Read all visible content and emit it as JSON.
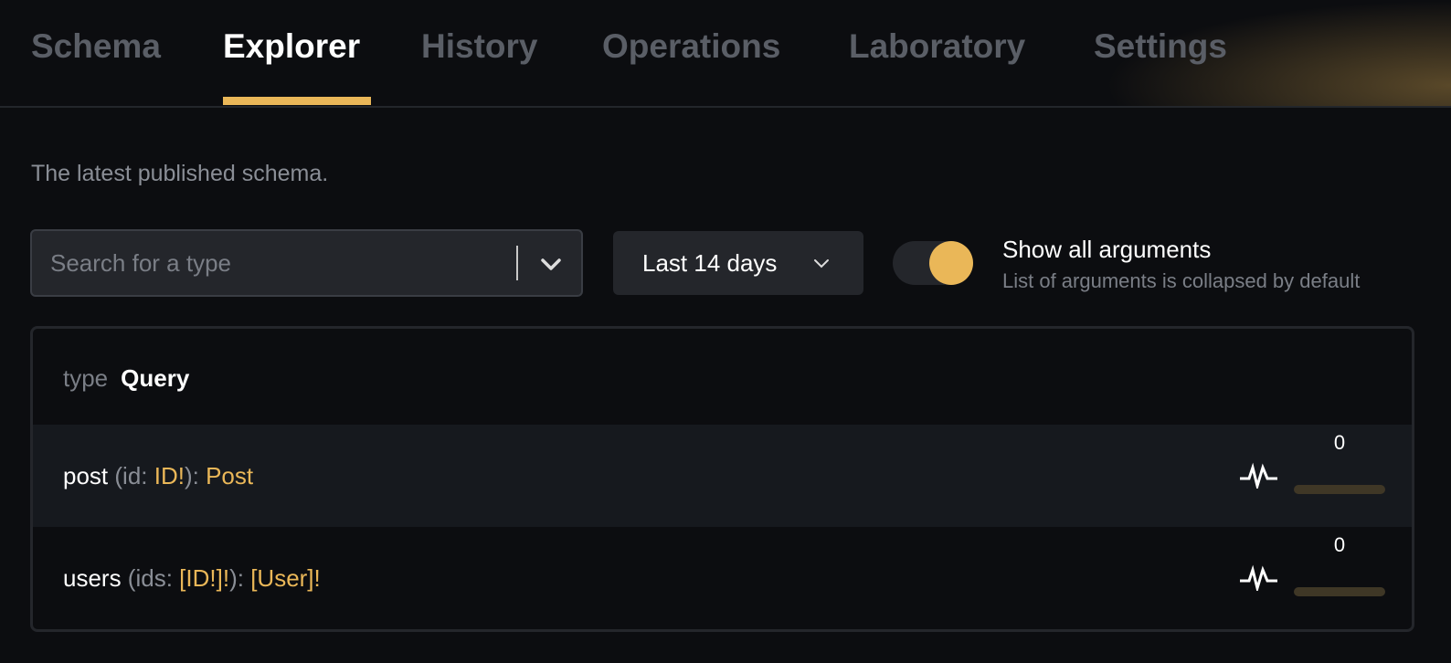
{
  "tabs": [
    {
      "label": "Schema"
    },
    {
      "label": "Explorer",
      "active": true
    },
    {
      "label": "History"
    },
    {
      "label": "Operations"
    },
    {
      "label": "Laboratory"
    },
    {
      "label": "Settings"
    }
  ],
  "subtitle": "The latest published schema.",
  "search": {
    "placeholder": "Search for a type",
    "value": ""
  },
  "period": {
    "label": "Last 14 days"
  },
  "toggle": {
    "on": true,
    "label": "Show all arguments",
    "description": "List of arguments is collapsed by default"
  },
  "type_header": {
    "keyword": "type",
    "name": "Query"
  },
  "fields": [
    {
      "name": "post",
      "arg_name": "id",
      "arg_type": "ID!",
      "return_type": "Post",
      "count": "0"
    },
    {
      "name": "users",
      "arg_name": "ids",
      "arg_type": "[ID!]!",
      "return_type": "[User]!",
      "count": "0"
    }
  ],
  "colors": {
    "accent": "#eab758",
    "background": "#0c0d10"
  }
}
